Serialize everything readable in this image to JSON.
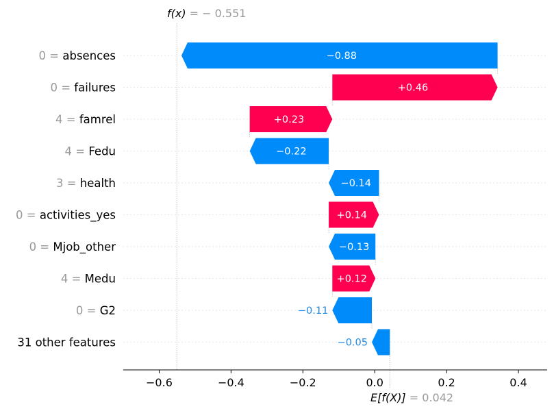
{
  "chart_data": {
    "type": "waterfall",
    "fx_label": "f(x)",
    "fx_value_text": "= − 0.551",
    "fx": -0.551,
    "ex_label": "E[f(X)]",
    "ex_value_text": "= 0.042",
    "ex": 0.042,
    "xlim": [
      -0.7,
      0.48
    ],
    "xticks": [
      -0.6,
      -0.4,
      -0.2,
      0.0,
      0.2,
      0.4
    ],
    "xtick_labels": [
      "−0.6",
      "−0.4",
      "−0.2",
      "0.0",
      "0.2",
      "0.4"
    ],
    "features": [
      {
        "value": "0 =",
        "name": "absences",
        "contribution": -0.88,
        "label": "−0.88"
      },
      {
        "value": "0 =",
        "name": "failures",
        "contribution": 0.46,
        "label": "+0.46"
      },
      {
        "value": "4 =",
        "name": "famrel",
        "contribution": 0.23,
        "label": "+0.23"
      },
      {
        "value": "4 =",
        "name": "Fedu",
        "contribution": -0.22,
        "label": "−0.22"
      },
      {
        "value": "3 =",
        "name": "health",
        "contribution": -0.14,
        "label": "−0.14"
      },
      {
        "value": "0 =",
        "name": "activities_yes",
        "contribution": 0.14,
        "label": "+0.14"
      },
      {
        "value": "0 =",
        "name": "Mjob_other",
        "contribution": -0.13,
        "label": "−0.13"
      },
      {
        "value": "4 =",
        "name": "Medu",
        "contribution": 0.12,
        "label": "+0.12"
      },
      {
        "value": "0 =",
        "name": "G2",
        "contribution": -0.11,
        "label": "−0.11"
      },
      {
        "value": "",
        "name": "31 other features",
        "contribution": -0.05,
        "label": "−0.05"
      }
    ],
    "colors": {
      "positive": "#ff0051",
      "negative": "#008bfb",
      "outside_label": "#1e88e5"
    }
  }
}
